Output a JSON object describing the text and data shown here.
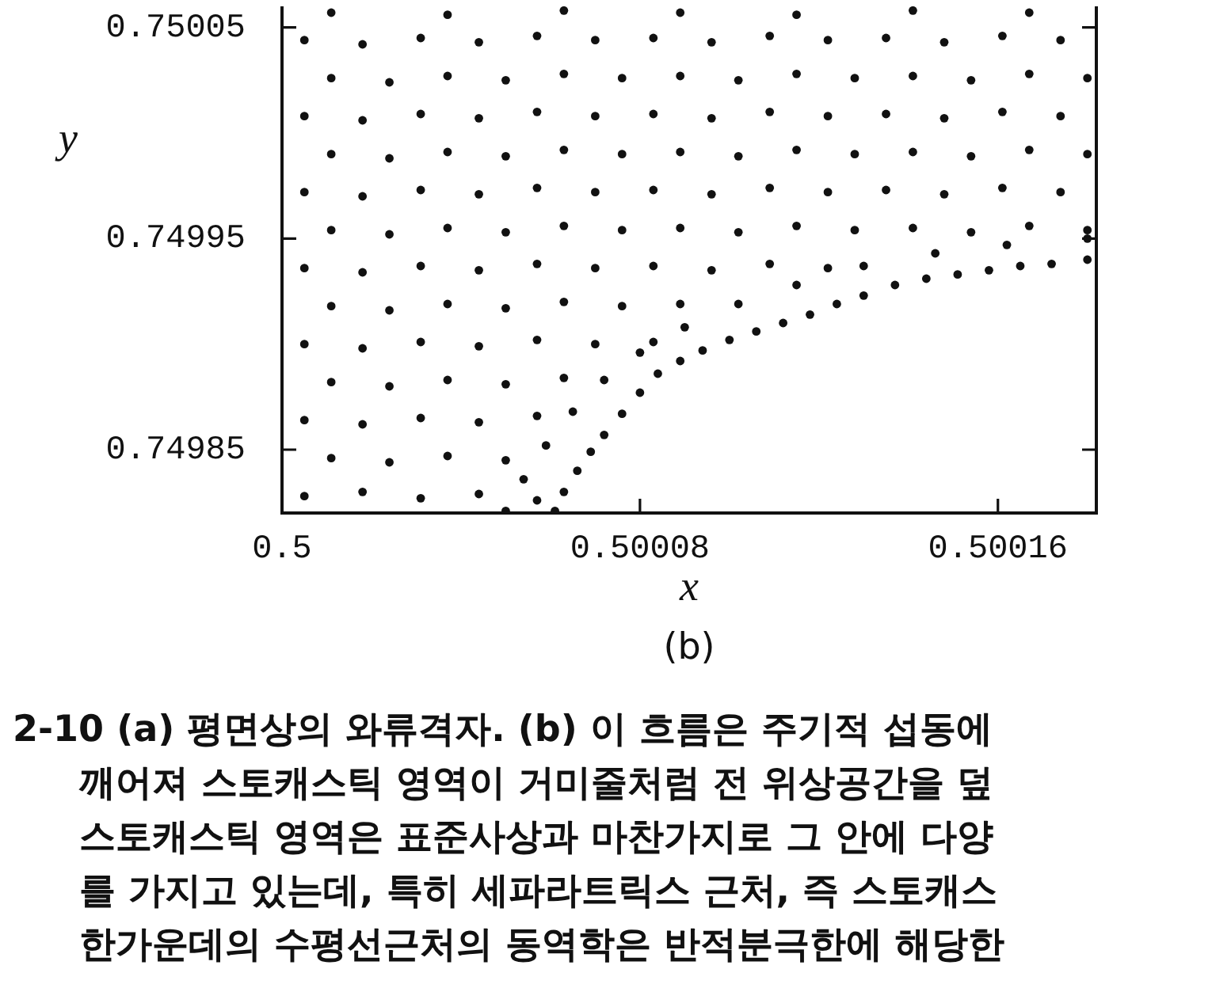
{
  "chart_data": {
    "type": "scatter",
    "xlabel": "x",
    "ylabel": "y",
    "marker": "circle",
    "xlim": [
      0.5,
      0.500182
    ],
    "ylim": [
      0.74982,
      0.75006
    ],
    "xticks": [
      0.5,
      0.50008,
      0.50016
    ],
    "yticks": [
      0.74985,
      0.74995,
      0.75005
    ],
    "annotations": [
      "(b)",
      "2-10 (a) 평면상의 와류격자. (b) 이 흐름은 주기적 섭동에",
      "깨어져 스토캐스틱 영역이 거미줄처럼 전 위상공간을 덮",
      "스토캐스틱 영역은 표준사상과 마찬가지로 그 안에 다양",
      "를 가지고 있는데, 특히 세파라트릭스 근처, 즉 스토캐스",
      "한가운데의 수평선근처의 동역학은 반적분극한에 해당한"
    ],
    "series": [
      {
        "color": "#111111",
        "x": [
          0.500005,
          0.500018,
          0.500031,
          0.500044,
          0.500057,
          0.500011,
          0.500024,
          0.500037,
          0.50005,
          0.500005,
          0.500018,
          0.500031,
          0.500044,
          0.500057,
          0.500011,
          0.500024,
          0.500037,
          0.50005,
          0.500063,
          0.500005,
          0.500018,
          0.500031,
          0.500044,
          0.500057,
          0.50007,
          0.500083,
          0.500011,
          0.500024,
          0.500037,
          0.50005,
          0.500063,
          0.500076,
          0.500089,
          0.500005,
          0.500018,
          0.500031,
          0.500044,
          0.500057,
          0.50007,
          0.500083,
          0.500096,
          0.500109,
          0.500122,
          0.500011,
          0.500024,
          0.500037,
          0.50005,
          0.500063,
          0.500076,
          0.500089,
          0.500102,
          0.500115,
          0.500128,
          0.500141,
          0.500154,
          0.500167,
          0.50018,
          0.500005,
          0.500018,
          0.500031,
          0.500044,
          0.500057,
          0.50007,
          0.500083,
          0.500096,
          0.500109,
          0.500122,
          0.500135,
          0.500148,
          0.500161,
          0.500174,
          0.500011,
          0.500024,
          0.500037,
          0.50005,
          0.500063,
          0.500076,
          0.500089,
          0.500102,
          0.500115,
          0.500128,
          0.500141,
          0.500154,
          0.500167,
          0.50018,
          0.500005,
          0.500018,
          0.500031,
          0.500044,
          0.500057,
          0.50007,
          0.500083,
          0.500096,
          0.500109,
          0.500122,
          0.500135,
          0.500148,
          0.500161,
          0.500174,
          0.500011,
          0.500024,
          0.500037,
          0.50005,
          0.500063,
          0.500076,
          0.500089,
          0.500102,
          0.500115,
          0.500128,
          0.500141,
          0.500154,
          0.500167,
          0.50018,
          0.500005,
          0.500018,
          0.500031,
          0.500044,
          0.500057,
          0.50007,
          0.500083,
          0.500096,
          0.500109,
          0.500122,
          0.500135,
          0.500148,
          0.500161,
          0.500174,
          0.500011,
          0.500037,
          0.500063,
          0.500089,
          0.500115,
          0.500141,
          0.500167
        ],
        "values": [
          0.749828,
          0.74983,
          0.749827,
          0.749829,
          0.749826,
          0.749846,
          0.749844,
          0.749847,
          0.749845,
          0.749864,
          0.749862,
          0.749865,
          0.749863,
          0.749866,
          0.749882,
          0.74988,
          0.749883,
          0.749881,
          0.749884,
          0.7499,
          0.749898,
          0.749901,
          0.749899,
          0.749902,
          0.7499,
          0.749901,
          0.749918,
          0.749916,
          0.749919,
          0.749917,
          0.74992,
          0.749918,
          0.749919,
          0.749936,
          0.749934,
          0.749937,
          0.749935,
          0.749938,
          0.749936,
          0.749937,
          0.749935,
          0.749938,
          0.749936,
          0.749954,
          0.749952,
          0.749955,
          0.749953,
          0.749956,
          0.749954,
          0.749955,
          0.749953,
          0.749956,
          0.749954,
          0.749955,
          0.749953,
          0.749956,
          0.749954,
          0.749972,
          0.74997,
          0.749973,
          0.749971,
          0.749974,
          0.749972,
          0.749973,
          0.749971,
          0.749974,
          0.749972,
          0.749973,
          0.749971,
          0.749974,
          0.749972,
          0.74999,
          0.749988,
          0.749991,
          0.749989,
          0.749992,
          0.74999,
          0.749991,
          0.749989,
          0.749992,
          0.74999,
          0.749991,
          0.749989,
          0.749992,
          0.74999,
          0.750008,
          0.750006,
          0.750009,
          0.750007,
          0.75001,
          0.750008,
          0.750009,
          0.750007,
          0.75001,
          0.750008,
          0.750009,
          0.750007,
          0.75001,
          0.750008,
          0.750026,
          0.750024,
          0.750027,
          0.750025,
          0.750028,
          0.750026,
          0.750027,
          0.750025,
          0.750028,
          0.750026,
          0.750027,
          0.750025,
          0.750028,
          0.750026,
          0.750044,
          0.750042,
          0.750045,
          0.750043,
          0.750046,
          0.750044,
          0.750045,
          0.750043,
          0.750046,
          0.750044,
          0.750045,
          0.750043,
          0.750046,
          0.750044,
          0.750057,
          0.750056,
          0.750058,
          0.750057,
          0.750056,
          0.750058,
          0.750057
        ]
      },
      {
        "color": "#111111",
        "x": [
          0.500061,
          0.500063,
          0.500066,
          0.500069,
          0.500072,
          0.500076,
          0.50008,
          0.500084,
          0.500089,
          0.500094,
          0.5001,
          0.500106,
          0.500112,
          0.500118,
          0.500124,
          0.50013,
          0.500137,
          0.500144,
          0.500151,
          0.500158,
          0.500165,
          0.500172,
          0.50018
        ],
        "values": [
          0.749821,
          0.74983,
          0.74984,
          0.749849,
          0.749857,
          0.749867,
          0.749877,
          0.749886,
          0.749892,
          0.749897,
          0.749902,
          0.749906,
          0.74991,
          0.749914,
          0.749919,
          0.749923,
          0.749928,
          0.749931,
          0.749933,
          0.749935,
          0.749937,
          0.749938,
          0.74994
        ]
      },
      {
        "color": "#111111",
        "x": [
          0.50005,
          0.500054,
          0.500059,
          0.500065,
          0.500072,
          0.50008,
          0.50009,
          0.500102,
          0.500115,
          0.50013,
          0.500146,
          0.500162,
          0.50018
        ],
        "values": [
          0.749821,
          0.749836,
          0.749852,
          0.749868,
          0.749883,
          0.749896,
          0.749908,
          0.749919,
          0.749928,
          0.749937,
          0.749943,
          0.749947,
          0.74995
        ]
      }
    ]
  }
}
